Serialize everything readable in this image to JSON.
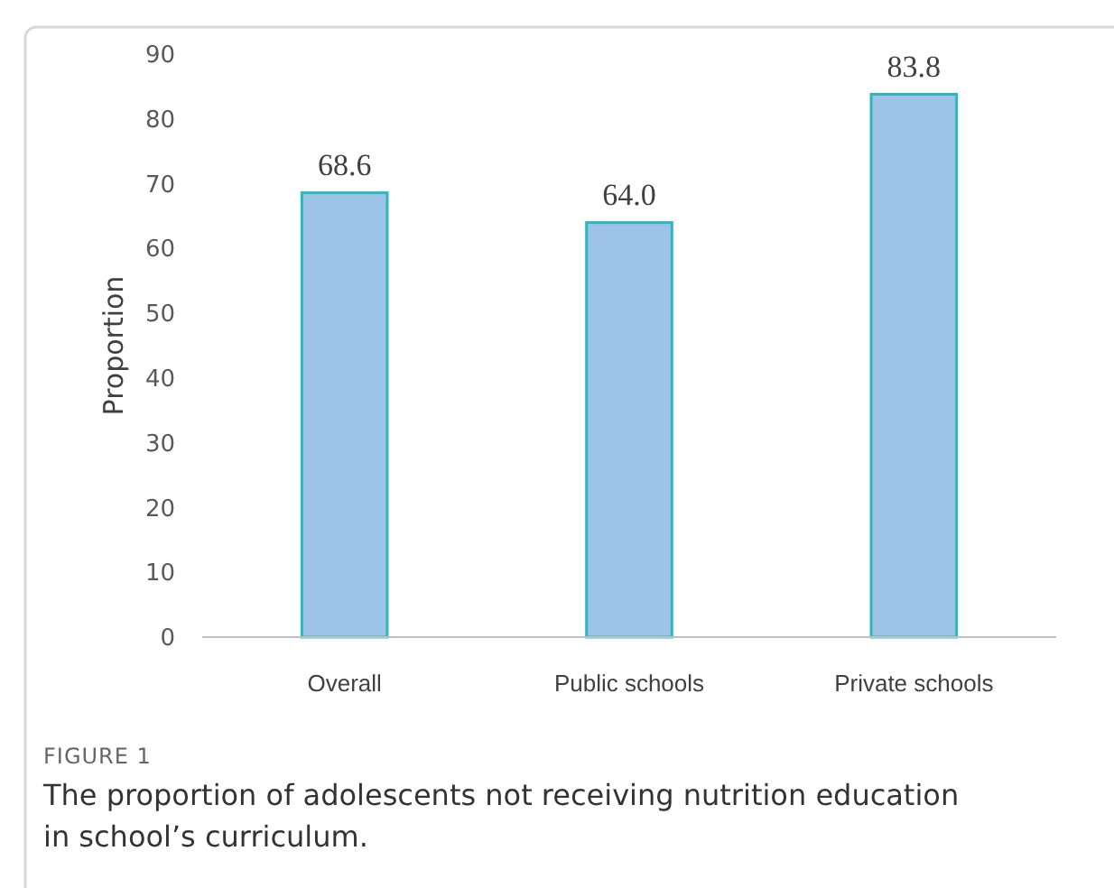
{
  "chart_data": {
    "type": "bar",
    "title": "FIGURE 1",
    "ylabel": "Proportion",
    "annotations": [
      "The proportion of adolescents not receiving nutrition education in school’s curriculum."
    ],
    "categories": [
      "Overall",
      "Public schools",
      "Private schools"
    ],
    "values": [
      68.6,
      64.0,
      83.8
    ],
    "value_labels": [
      "68.6",
      "64.0",
      "83.8"
    ],
    "color": "#9dc3e6",
    "ylim": [
      0,
      90
    ],
    "yticks": [
      0,
      10,
      20,
      30,
      40,
      50,
      60,
      70,
      80,
      90
    ],
    "grid": false
  }
}
